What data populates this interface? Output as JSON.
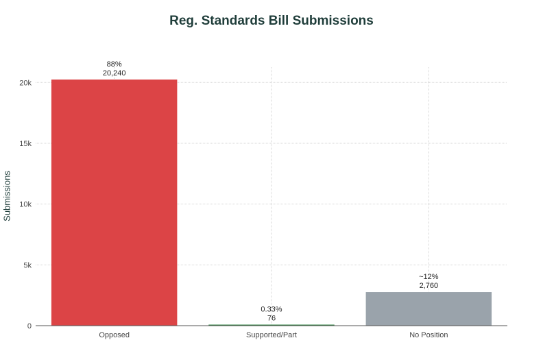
{
  "chart_data": {
    "type": "bar",
    "title": "Reg. Standards Bill Submissions",
    "xlabel": "",
    "ylabel": "Submissions",
    "categories": [
      "Opposed",
      "Supported/Part",
      "No Position"
    ],
    "values": [
      20240,
      76,
      2760
    ],
    "percent_labels": [
      "88%",
      "0.33%",
      "~12%"
    ],
    "value_labels": [
      "20,240",
      "76",
      "2,760"
    ],
    "colors": [
      "#dc4446",
      "#2e8540",
      "#9aa3ab"
    ],
    "ylim": [
      0,
      20240
    ],
    "y_ticks": [
      0,
      5000,
      10000,
      15000,
      20000
    ],
    "y_tick_labels": [
      "0",
      "5k",
      "10k",
      "15k",
      "20k"
    ],
    "grid": true,
    "legend": "none"
  }
}
